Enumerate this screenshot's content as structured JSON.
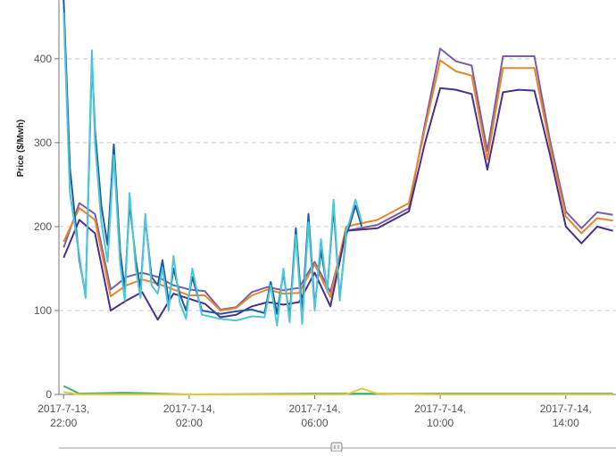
{
  "chart_data": {
    "type": "line",
    "xlabel": "",
    "ylabel": "Price ($/Mwh)",
    "ylim": [
      0,
      470
    ],
    "xlim": [
      -0.15,
      17.6
    ],
    "y_ticks": [
      0,
      100,
      200,
      300,
      400
    ],
    "grid": "horizontal dashed",
    "x_ticks": [
      {
        "x": 0,
        "line1": "2017-7-13,",
        "line2": "22:00"
      },
      {
        "x": 4,
        "line1": "2017-7-14,",
        "line2": "02:00"
      },
      {
        "x": 8,
        "line1": "2017-7-14,",
        "line2": "06:00"
      },
      {
        "x": 12,
        "line1": "2017-7-14,",
        "line2": "10:00"
      },
      {
        "x": 16,
        "line1": "2017-7-14,",
        "line2": "14:00"
      }
    ],
    "x_unit_note": "x values are hours after 2017-7-13 22:00",
    "series": [
      {
        "color": "#7b5ea7",
        "values": [
          [
            0,
            175
          ],
          [
            0.5,
            228
          ],
          [
            1,
            215
          ],
          [
            1.5,
            125
          ],
          [
            2,
            140
          ],
          [
            2.5,
            145
          ],
          [
            3,
            140
          ],
          [
            3.5,
            130
          ],
          [
            4,
            125
          ],
          [
            4.5,
            123
          ],
          [
            5,
            101
          ],
          [
            5.5,
            104
          ],
          [
            6,
            122
          ],
          [
            6.5,
            128
          ],
          [
            7,
            124
          ],
          [
            7.5,
            127
          ],
          [
            8,
            158
          ],
          [
            8.5,
            122
          ],
          [
            9,
            195
          ],
          [
            10,
            202
          ],
          [
            11,
            222
          ],
          [
            11.5,
            320
          ],
          [
            12,
            412
          ],
          [
            12.5,
            397
          ],
          [
            13,
            392
          ],
          [
            13.5,
            290
          ],
          [
            14,
            403
          ],
          [
            14.5,
            403
          ],
          [
            15,
            403
          ],
          [
            15.5,
            302
          ],
          [
            16,
            218
          ],
          [
            16.5,
            198
          ],
          [
            17,
            217
          ],
          [
            17.5,
            214
          ]
        ]
      },
      {
        "color": "#e8862c",
        "values": [
          [
            0,
            182
          ],
          [
            0.5,
            222
          ],
          [
            1,
            208
          ],
          [
            1.5,
            117
          ],
          [
            2,
            130
          ],
          [
            2.5,
            137
          ],
          [
            3,
            132
          ],
          [
            3.5,
            125
          ],
          [
            4,
            118
          ],
          [
            4.5,
            118
          ],
          [
            5,
            100
          ],
          [
            5.5,
            103
          ],
          [
            6,
            118
          ],
          [
            6.5,
            125
          ],
          [
            7,
            120
          ],
          [
            7.5,
            121
          ],
          [
            8,
            155
          ],
          [
            8.5,
            116
          ],
          [
            9,
            200
          ],
          [
            10,
            208
          ],
          [
            11,
            228
          ],
          [
            11.5,
            315
          ],
          [
            12,
            398
          ],
          [
            12.5,
            385
          ],
          [
            13,
            380
          ],
          [
            13.5,
            280
          ],
          [
            14,
            389
          ],
          [
            14.5,
            389
          ],
          [
            15,
            389
          ],
          [
            15.5,
            295
          ],
          [
            16,
            212
          ],
          [
            16.5,
            192
          ],
          [
            17,
            210
          ],
          [
            17.5,
            207
          ]
        ]
      },
      {
        "color": "#4b2f8a",
        "values": [
          [
            0,
            163
          ],
          [
            0.5,
            208
          ],
          [
            1,
            192
          ],
          [
            1.5,
            100
          ],
          [
            2,
            112
          ],
          [
            2.5,
            122
          ],
          [
            3,
            89
          ],
          [
            3.5,
            120
          ],
          [
            4,
            114
          ],
          [
            4.5,
            108
          ],
          [
            5,
            92
          ],
          [
            5.5,
            95
          ],
          [
            6,
            105
          ],
          [
            6.5,
            110
          ],
          [
            7,
            107
          ],
          [
            7.5,
            110
          ],
          [
            8,
            145
          ],
          [
            8.5,
            105
          ],
          [
            9,
            195
          ],
          [
            10,
            198
          ],
          [
            11,
            218
          ],
          [
            11.5,
            298
          ],
          [
            12,
            365
          ],
          [
            12.5,
            363
          ],
          [
            13,
            358
          ],
          [
            13.5,
            268
          ],
          [
            14,
            360
          ],
          [
            14.5,
            363
          ],
          [
            15,
            362
          ],
          [
            15.5,
            285
          ],
          [
            16,
            200
          ],
          [
            16.5,
            180
          ],
          [
            17,
            200
          ],
          [
            17.5,
            195
          ]
        ]
      },
      {
        "color": "#1f5aa0",
        "values": [
          [
            0,
            470
          ],
          [
            0.2,
            270
          ],
          [
            0.5,
            160
          ],
          [
            0.7,
            118
          ],
          [
            0.9,
            400
          ],
          [
            1,
            315
          ],
          [
            1.2,
            225
          ],
          [
            1.4,
            178
          ],
          [
            1.6,
            298
          ],
          [
            1.8,
            170
          ],
          [
            1.95,
            125
          ],
          [
            2.1,
            228
          ],
          [
            2.3,
            160
          ],
          [
            2.45,
            125
          ],
          [
            2.6,
            210
          ],
          [
            2.8,
            140
          ],
          [
            3,
            130
          ],
          [
            3.15,
            160
          ],
          [
            3.35,
            110
          ],
          [
            3.5,
            150
          ],
          [
            3.7,
            120
          ],
          [
            3.9,
            100
          ],
          [
            4.1,
            140
          ],
          [
            4.4,
            100
          ],
          [
            5,
            96
          ],
          [
            5.5,
            99
          ],
          [
            6,
            101
          ],
          [
            6.4,
            97
          ],
          [
            6.6,
            134
          ],
          [
            6.8,
            96
          ],
          [
            7,
            145
          ],
          [
            7.2,
            92
          ],
          [
            7.4,
            198
          ],
          [
            7.6,
            96
          ],
          [
            7.8,
            215
          ],
          [
            8,
            105
          ],
          [
            8.2,
            172
          ],
          [
            8.4,
            125
          ],
          [
            8.6,
            223
          ],
          [
            8.8,
            115
          ],
          [
            9,
            190
          ],
          [
            9.1,
            200
          ],
          [
            9.3,
            225
          ],
          [
            9.5,
            200
          ]
        ]
      },
      {
        "color": "#4dc8d8",
        "values": [
          [
            0,
            455
          ],
          [
            0.2,
            240
          ],
          [
            0.5,
            165
          ],
          [
            0.7,
            115
          ],
          [
            0.9,
            410
          ],
          [
            1,
            300
          ],
          [
            1.2,
            205
          ],
          [
            1.4,
            158
          ],
          [
            1.6,
            285
          ],
          [
            1.8,
            155
          ],
          [
            1.95,
            112
          ],
          [
            2.1,
            240
          ],
          [
            2.3,
            150
          ],
          [
            2.45,
            115
          ],
          [
            2.6,
            215
          ],
          [
            2.8,
            130
          ],
          [
            3,
            120
          ],
          [
            3.15,
            150
          ],
          [
            3.35,
            100
          ],
          [
            3.5,
            165
          ],
          [
            3.7,
            110
          ],
          [
            3.9,
            90
          ],
          [
            4.1,
            150
          ],
          [
            4.4,
            95
          ],
          [
            5,
            90
          ],
          [
            5.5,
            88
          ],
          [
            6,
            93
          ],
          [
            6.4,
            92
          ],
          [
            6.6,
            130
          ],
          [
            6.8,
            82
          ],
          [
            7,
            150
          ],
          [
            7.2,
            86
          ],
          [
            7.4,
            190
          ],
          [
            7.6,
            84
          ],
          [
            7.8,
            205
          ],
          [
            8,
            100
          ],
          [
            8.2,
            185
          ],
          [
            8.4,
            122
          ],
          [
            8.6,
            232
          ],
          [
            8.8,
            112
          ],
          [
            9,
            195
          ],
          [
            9.1,
            205
          ],
          [
            9.3,
            232
          ],
          [
            9.5,
            205
          ]
        ]
      },
      {
        "color": "#3bb273",
        "values": [
          [
            0,
            10
          ],
          [
            0.5,
            1
          ],
          [
            2,
            2
          ],
          [
            4,
            0
          ],
          [
            8,
            1
          ],
          [
            12,
            1
          ],
          [
            17.5,
            1
          ]
        ]
      },
      {
        "color": "#e8c83a",
        "values": [
          [
            0,
            3
          ],
          [
            0.5,
            0
          ],
          [
            4,
            0
          ],
          [
            9,
            0
          ],
          [
            9.5,
            7
          ],
          [
            10,
            1
          ],
          [
            12,
            0
          ],
          [
            17.5,
            0
          ]
        ]
      }
    ]
  }
}
